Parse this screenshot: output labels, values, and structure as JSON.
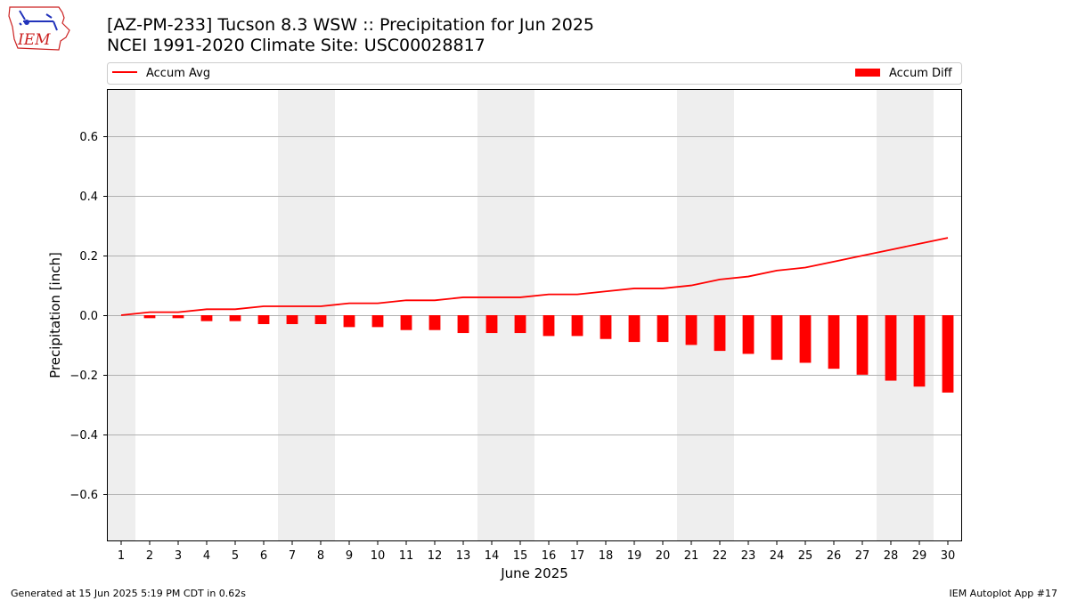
{
  "header": {
    "title_line1": "[AZ-PM-233] Tucson 8.3 WSW :: Precipitation for Jun 2025",
    "title_line2": "NCEI 1991-2020 Climate Site: USC00028817"
  },
  "logo": {
    "text": "IEM",
    "icon": "iem-iowa-logo"
  },
  "footer": {
    "left": "Generated at 15 Jun 2025 5:19 PM CDT in 0.62s",
    "right": "IEM Autoplot App #17"
  },
  "colors": {
    "series": "#ff0000",
    "weekend": "#eeeeee",
    "grid": "#b0b0b0"
  },
  "chart_data": {
    "type": "bar",
    "xlabel": "June 2025",
    "ylabel": "Precipitation [inch]",
    "ylim": [
      -0.76,
      0.76
    ],
    "yticks": [
      -0.6,
      -0.4,
      -0.2,
      0.0,
      0.2,
      0.4,
      0.6
    ],
    "ytick_labels": [
      "−0.6",
      "−0.4",
      "−0.2",
      "0.0",
      "0.2",
      "0.4",
      "0.6"
    ],
    "xlim": [
      0.5,
      30.5
    ],
    "categories": [
      "1",
      "2",
      "3",
      "4",
      "5",
      "6",
      "7",
      "8",
      "9",
      "10",
      "11",
      "12",
      "13",
      "14",
      "15",
      "16",
      "17",
      "18",
      "19",
      "20",
      "21",
      "22",
      "23",
      "24",
      "25",
      "26",
      "27",
      "28",
      "29",
      "30"
    ],
    "weekend_days": [
      1,
      7,
      8,
      14,
      15,
      21,
      22,
      28,
      29
    ],
    "grid": "y",
    "legend_placement": "top",
    "series": [
      {
        "name": "Accum Avg",
        "kind": "line",
        "values": [
          0.0,
          0.01,
          0.01,
          0.02,
          0.02,
          0.03,
          0.03,
          0.03,
          0.04,
          0.04,
          0.05,
          0.05,
          0.06,
          0.06,
          0.06,
          0.07,
          0.07,
          0.08,
          0.09,
          0.09,
          0.1,
          0.12,
          0.13,
          0.15,
          0.16,
          0.18,
          0.2,
          0.22,
          0.24,
          0.26
        ]
      },
      {
        "name": "Accum Diff",
        "kind": "bar",
        "values": [
          0.0,
          -0.01,
          -0.01,
          -0.02,
          -0.02,
          -0.03,
          -0.03,
          -0.03,
          -0.04,
          -0.04,
          -0.05,
          -0.05,
          -0.06,
          -0.06,
          -0.06,
          -0.07,
          -0.07,
          -0.08,
          -0.09,
          -0.09,
          -0.1,
          -0.12,
          -0.13,
          -0.15,
          -0.16,
          -0.18,
          -0.2,
          -0.22,
          -0.24,
          -0.26
        ]
      }
    ]
  }
}
